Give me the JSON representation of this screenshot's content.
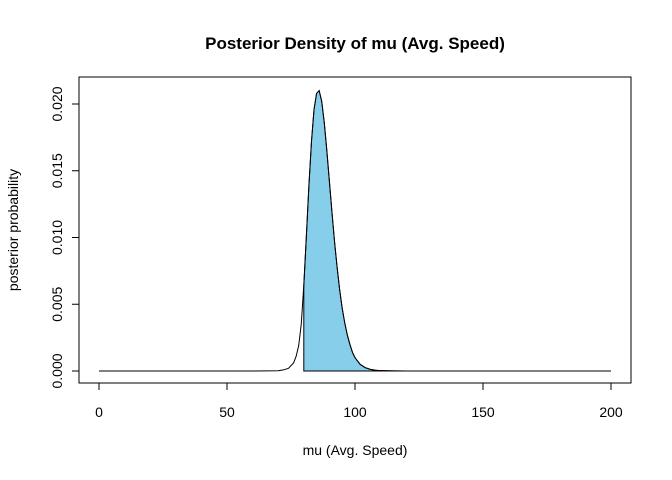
{
  "chart_data": {
    "type": "line",
    "title": "Posterior Density of mu (Avg. Speed)",
    "xlabel": "mu (Avg. Speed)",
    "ylabel": "posterior probability",
    "xlim": [
      0,
      200
    ],
    "ylim": [
      0,
      0.021
    ],
    "x_ticks": [
      0,
      50,
      100,
      150,
      200
    ],
    "x_tick_labels": [
      "0",
      "50",
      "100",
      "150",
      "200"
    ],
    "y_ticks": [
      0,
      0.005,
      0.01,
      0.015,
      0.02
    ],
    "y_tick_labels": [
      "0.000",
      "0.005",
      "0.010",
      "0.015",
      "0.020"
    ],
    "grid": false,
    "series": [
      {
        "x": [
          0,
          60,
          70,
          72,
          74,
          76,
          77,
          78,
          79,
          80,
          81,
          82,
          83,
          84,
          85,
          86,
          87,
          88,
          89,
          90,
          91,
          92,
          93,
          94,
          95,
          96,
          97,
          98,
          99,
          100,
          102,
          104,
          106,
          108,
          110,
          115,
          120,
          130,
          200
        ],
        "y": [
          0,
          0,
          2e-05,
          8e-05,
          0.0002,
          0.0006,
          0.0011,
          0.0019,
          0.0035,
          0.0064,
          0.0101,
          0.0139,
          0.0172,
          0.0196,
          0.0208,
          0.021,
          0.0202,
          0.0186,
          0.0165,
          0.0142,
          0.0119,
          0.0097,
          0.0078,
          0.0061,
          0.0047,
          0.0036,
          0.0027,
          0.002,
          0.0014,
          0.001,
          0.0005,
          0.00025,
          0.00012,
          6e-05,
          3e-05,
          1e-05,
          0,
          0,
          0
        ]
      }
    ],
    "shaded_region": {
      "from_x": 80,
      "color": "#87CEEB"
    }
  }
}
